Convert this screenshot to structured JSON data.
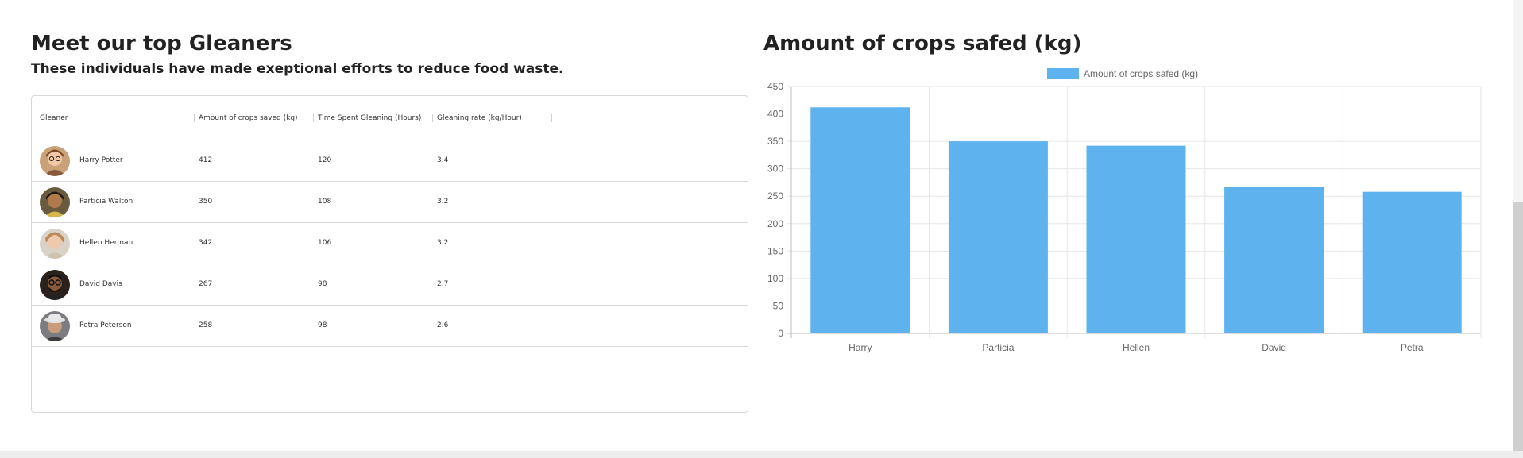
{
  "gleaners_section": {
    "title": "Meet our top Gleaners",
    "subtitle": "These individuals have made exeptional efforts to reduce food waste."
  },
  "table": {
    "columns": [
      "Gleaner",
      "Amount of crops saved (kg)",
      "Time Spent Gleaning (Hours)",
      "Gleaning rate (kg/Hour)"
    ],
    "rows": [
      {
        "name": "Harry Potter",
        "crops": "412",
        "hours": "120",
        "rate": "3.4"
      },
      {
        "name": "Particia Walton",
        "crops": "350",
        "hours": "108",
        "rate": "3.2"
      },
      {
        "name": "Hellen Herman",
        "crops": "342",
        "hours": "106",
        "rate": "3.2"
      },
      {
        "name": "David Davis",
        "crops": "267",
        "hours": "98",
        "rate": "2.7"
      },
      {
        "name": "Petra Peterson",
        "crops": "258",
        "hours": "98",
        "rate": "2.6"
      }
    ]
  },
  "chart_section": {
    "title": "Amount of crops safed (kg)"
  },
  "chart_data": {
    "type": "bar",
    "legend": "Amount of crops safed (kg)",
    "legend_position": "top",
    "categories": [
      "Harry",
      "Particia",
      "Hellen",
      "David",
      "Petra"
    ],
    "series": [
      {
        "name": "Amount of crops safed (kg)",
        "values": [
          412,
          350,
          342,
          267,
          258
        ]
      }
    ],
    "yticks": [
      "0",
      "50",
      "100",
      "150",
      "200",
      "250",
      "300",
      "350",
      "400",
      "450"
    ],
    "ylim": [
      0,
      450
    ],
    "grid": true,
    "bar_color": "#5eb3ee"
  }
}
